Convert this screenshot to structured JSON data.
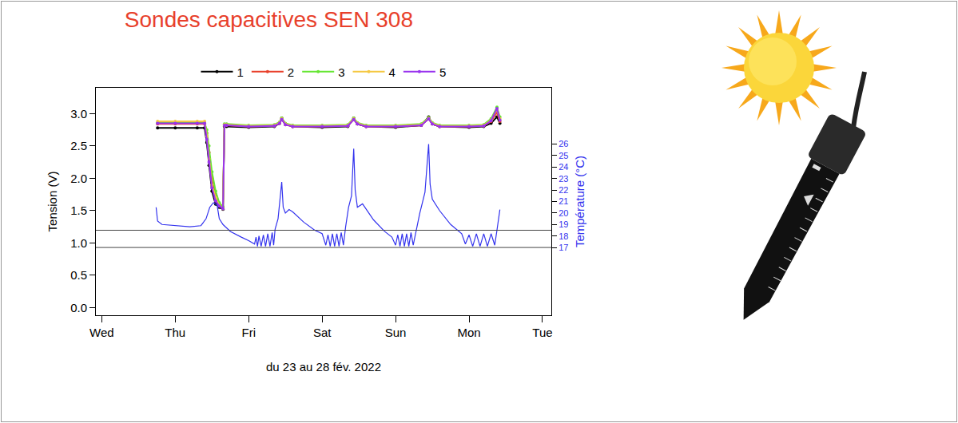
{
  "chart_data": {
    "type": "line",
    "title": "Sondes capacitives SEN 308",
    "xlabel": "du 23 au 28 fév. 2022",
    "ylabel": "Tension (V)",
    "y2label": "Température (°C)",
    "legend": "top",
    "grid": false,
    "xlim": [
      -0.08,
      6.12
    ],
    "xticks": [
      {
        "value": 0,
        "label": "Wed"
      },
      {
        "value": 1,
        "label": "Thu"
      },
      {
        "value": 2,
        "label": "Fri"
      },
      {
        "value": 3,
        "label": "Sat"
      },
      {
        "value": 4,
        "label": "Sun"
      },
      {
        "value": 5,
        "label": "Mon"
      },
      {
        "value": 6,
        "label": "Tue"
      }
    ],
    "ylim": [
      -0.12,
      3.4
    ],
    "yticks": [
      {
        "value": 0,
        "label": "0.0"
      },
      0.5,
      {
        "value": 1,
        "label": "1.0"
      },
      1.5,
      {
        "value": 2,
        "label": "2.0"
      },
      2.5,
      {
        "value": 3,
        "label": "3.0"
      }
    ],
    "y2lim": [
      11.1,
      30.9
    ],
    "y2ticks": [
      17,
      18,
      19,
      20,
      21,
      22,
      23,
      24,
      25,
      26
    ],
    "hlines": [
      {
        "value": 17,
        "axis": "y2"
      },
      {
        "value": 18.5,
        "axis": "y2"
      }
    ],
    "series": [
      {
        "name": "1",
        "color": "#000000",
        "marker": "circle",
        "x": [
          0.76,
          1.0,
          1.3,
          1.4,
          1.43,
          1.46,
          1.5,
          1.55,
          1.6,
          1.65,
          1.67,
          1.7,
          2.0,
          2.35,
          2.42,
          2.45,
          2.5,
          2.6,
          3.0,
          3.35,
          3.43,
          3.48,
          3.6,
          4.0,
          4.35,
          4.45,
          4.5,
          4.6,
          5.0,
          5.2,
          5.3,
          5.38,
          5.42
        ],
        "values": [
          2.78,
          2.78,
          2.78,
          2.78,
          2.55,
          2.2,
          1.8,
          1.6,
          1.55,
          1.52,
          2.8,
          2.8,
          2.79,
          2.8,
          2.85,
          2.93,
          2.84,
          2.8,
          2.79,
          2.8,
          2.93,
          2.84,
          2.8,
          2.79,
          2.82,
          2.95,
          2.84,
          2.8,
          2.79,
          2.8,
          2.85,
          2.95,
          2.85
        ]
      },
      {
        "name": "2",
        "color": "#e8402b",
        "marker": "circle",
        "x": [
          0.76,
          1.0,
          1.3,
          1.4,
          1.43,
          1.46,
          1.5,
          1.55,
          1.6,
          1.65,
          1.67,
          1.7,
          2.0,
          2.35,
          2.42,
          2.45,
          2.5,
          2.6,
          3.0,
          3.35,
          3.43,
          3.48,
          3.6,
          4.0,
          4.35,
          4.45,
          4.5,
          4.6,
          5.0,
          5.2,
          5.3,
          5.38,
          5.42
        ],
        "values": [
          2.84,
          2.84,
          2.84,
          2.84,
          2.7,
          2.4,
          2.0,
          1.75,
          1.6,
          1.55,
          2.82,
          2.82,
          2.8,
          2.81,
          2.85,
          2.91,
          2.83,
          2.8,
          2.8,
          2.81,
          2.91,
          2.84,
          2.8,
          2.8,
          2.82,
          2.92,
          2.84,
          2.8,
          2.8,
          2.81,
          2.88,
          3.02,
          2.88
        ]
      },
      {
        "name": "3",
        "color": "#66e633",
        "marker": "circle",
        "x": [
          0.76,
          1.0,
          1.3,
          1.4,
          1.43,
          1.46,
          1.5,
          1.55,
          1.6,
          1.65,
          1.67,
          1.7,
          2.0,
          2.35,
          2.42,
          2.45,
          2.5,
          2.6,
          3.0,
          3.35,
          3.43,
          3.48,
          3.6,
          4.0,
          4.35,
          4.45,
          4.5,
          4.6,
          5.0,
          5.2,
          5.3,
          5.38,
          5.42
        ],
        "values": [
          2.86,
          2.86,
          2.86,
          2.86,
          2.75,
          2.5,
          2.1,
          1.8,
          1.62,
          1.56,
          2.84,
          2.84,
          2.82,
          2.83,
          2.87,
          2.93,
          2.85,
          2.82,
          2.82,
          2.83,
          2.93,
          2.86,
          2.82,
          2.82,
          2.84,
          2.94,
          2.86,
          2.82,
          2.82,
          2.83,
          2.92,
          3.1,
          2.95
        ]
      },
      {
        "name": "4",
        "color": "#f5c842",
        "marker": "circle",
        "x": [
          0.76,
          1.0,
          1.3,
          1.4,
          1.43,
          1.46,
          1.5,
          1.55,
          1.6,
          1.65,
          1.67,
          1.7,
          2.0,
          2.35,
          2.42,
          2.45,
          2.5,
          2.6,
          3.0,
          3.35,
          3.43,
          3.48,
          3.6,
          4.0,
          4.35,
          4.45,
          4.5,
          4.6,
          5.0,
          5.2,
          5.3,
          5.38,
          5.42
        ],
        "values": [
          2.88,
          2.88,
          2.88,
          2.88,
          2.65,
          2.3,
          1.9,
          1.7,
          1.58,
          1.53,
          2.83,
          2.83,
          2.81,
          2.82,
          2.86,
          2.92,
          2.84,
          2.81,
          2.81,
          2.82,
          2.92,
          2.85,
          2.81,
          2.81,
          2.83,
          2.93,
          2.85,
          2.81,
          2.81,
          2.82,
          2.9,
          3.06,
          2.92
        ]
      },
      {
        "name": "5",
        "color": "#9933ee",
        "marker": "circle",
        "x": [
          0.76,
          1.0,
          1.3,
          1.4,
          1.43,
          1.46,
          1.5,
          1.55,
          1.6,
          1.65,
          1.67,
          1.7,
          2.0,
          2.35,
          2.42,
          2.45,
          2.5,
          2.6,
          3.0,
          3.35,
          3.43,
          3.48,
          3.6,
          4.0,
          4.35,
          4.45,
          4.5,
          4.6,
          5.0,
          5.2,
          5.3,
          5.38,
          5.42
        ],
        "values": [
          2.85,
          2.85,
          2.85,
          2.85,
          2.6,
          2.25,
          1.85,
          1.65,
          1.57,
          1.53,
          2.82,
          2.82,
          2.8,
          2.81,
          2.85,
          2.91,
          2.83,
          2.8,
          2.8,
          2.81,
          2.91,
          2.84,
          2.8,
          2.8,
          2.82,
          2.92,
          2.84,
          2.8,
          2.8,
          2.81,
          2.89,
          3.08,
          2.9
        ]
      },
      {
        "color": "#3333ee",
        "axis": "y2",
        "line_style": "solid",
        "x": [
          0.74,
          0.76,
          0.82,
          1.0,
          1.2,
          1.35,
          1.42,
          1.47,
          1.52,
          1.57,
          1.6,
          1.65,
          1.75,
          1.9,
          2.0,
          2.08,
          2.1,
          2.12,
          2.14,
          2.17,
          2.2,
          2.23,
          2.26,
          2.29,
          2.32,
          2.34,
          2.36,
          2.4,
          2.45,
          2.47,
          2.5,
          2.55,
          2.6,
          2.75,
          2.9,
          3.0,
          3.05,
          3.08,
          3.11,
          3.14,
          3.17,
          3.2,
          3.23,
          3.26,
          3.29,
          3.32,
          3.36,
          3.4,
          3.43,
          3.45,
          3.48,
          3.55,
          3.7,
          3.85,
          3.95,
          4.0,
          4.03,
          4.06,
          4.09,
          4.12,
          4.15,
          4.18,
          4.21,
          4.24,
          4.28,
          4.33,
          4.4,
          4.45,
          4.47,
          4.5,
          4.6,
          4.75,
          4.9,
          4.95,
          5.0,
          5.05,
          5.1,
          5.15,
          5.2,
          5.25,
          5.3,
          5.35,
          5.38,
          5.42
        ],
        "values": [
          20.5,
          19.3,
          19.0,
          18.9,
          18.8,
          18.9,
          19.5,
          20.5,
          20.9,
          20.7,
          19.5,
          19.0,
          18.4,
          17.9,
          17.6,
          17.3,
          17.9,
          17.1,
          18.0,
          17.1,
          18.1,
          17.1,
          18.2,
          17.1,
          18.3,
          17.2,
          18.6,
          19.5,
          22.7,
          20.5,
          20.0,
          20.3,
          20.1,
          19.2,
          18.5,
          18.2,
          17.2,
          18.1,
          17.1,
          18.2,
          17.1,
          18.2,
          17.1,
          18.3,
          17.2,
          18.8,
          20.5,
          21.5,
          25.6,
          22.0,
          20.5,
          20.8,
          19.4,
          18.4,
          17.9,
          17.2,
          18.1,
          17.1,
          18.2,
          17.1,
          18.2,
          17.1,
          18.3,
          17.2,
          18.5,
          20.0,
          21.8,
          26.0,
          22.5,
          21.2,
          20.2,
          19.0,
          18.2,
          17.3,
          18.1,
          17.1,
          18.2,
          17.1,
          18.2,
          17.1,
          18.2,
          17.2,
          18.5,
          20.3
        ]
      }
    ]
  }
}
